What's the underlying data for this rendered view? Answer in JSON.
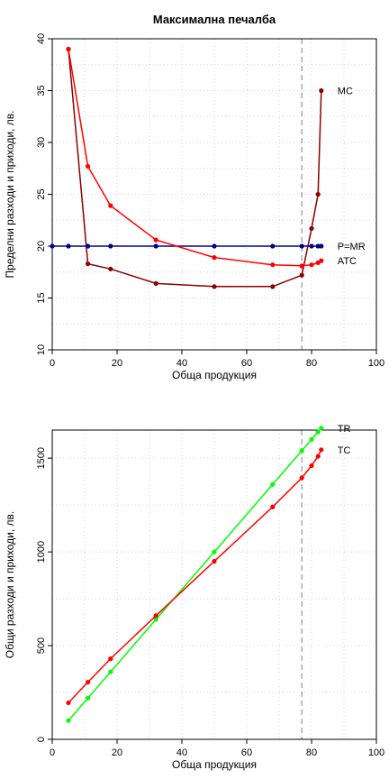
{
  "chart_data": [
    {
      "type": "line",
      "title": "Максимална печалба",
      "xlabel": "Обща продукция",
      "ylabel": "Пределни разходи и приходи, лв.",
      "xlim": [
        0,
        100
      ],
      "ylim": [
        10,
        40
      ],
      "xticks": [
        0,
        20,
        40,
        60,
        80,
        100
      ],
      "yticks": [
        10,
        15,
        20,
        25,
        30,
        35,
        40
      ],
      "grid": true,
      "vline_x": 77,
      "series": [
        {
          "name": "MC",
          "color": "#8b0000",
          "points": [
            [
              5,
              39
            ],
            [
              11,
              18.3
            ],
            [
              18,
              17.8
            ],
            [
              32,
              16.4
            ],
            [
              50,
              16.1
            ],
            [
              68,
              16.1
            ],
            [
              77,
              17.2
            ],
            [
              80,
              21.7
            ],
            [
              82,
              25
            ],
            [
              83,
              35
            ]
          ]
        },
        {
          "name": "P=MR",
          "color": "#00008b",
          "points": [
            [
              0,
              20
            ],
            [
              5,
              20
            ],
            [
              11,
              20
            ],
            [
              18,
              20
            ],
            [
              32,
              20
            ],
            [
              50,
              20
            ],
            [
              68,
              20
            ],
            [
              77,
              20
            ],
            [
              80,
              20
            ],
            [
              82,
              20
            ],
            [
              83,
              20
            ]
          ]
        },
        {
          "name": "ATC",
          "color": "#ff0000",
          "points": [
            [
              5,
              39
            ],
            [
              11,
              27.7
            ],
            [
              18,
              23.9
            ],
            [
              32,
              20.6
            ],
            [
              50,
              18.9
            ],
            [
              68,
              18.2
            ],
            [
              77,
              18.1
            ],
            [
              80,
              18.2
            ],
            [
              82,
              18.4
            ],
            [
              83,
              18.6
            ]
          ]
        }
      ]
    },
    {
      "type": "line",
      "title": "",
      "xlabel": "Обща продукция",
      "ylabel": "Общи разходи и приходи, лв.",
      "xlim": [
        0,
        100
      ],
      "ylim": [
        0,
        1650
      ],
      "xticks": [
        0,
        20,
        40,
        60,
        80,
        100
      ],
      "yticks": [
        0,
        500,
        1000,
        1500
      ],
      "grid": true,
      "vline_x": 77,
      "series": [
        {
          "name": "TR",
          "color": "#00ff00",
          "points": [
            [
              5,
              100
            ],
            [
              11,
              220
            ],
            [
              18,
              360
            ],
            [
              32,
              640
            ],
            [
              50,
              1000
            ],
            [
              68,
              1360
            ],
            [
              77,
              1540
            ],
            [
              80,
              1600
            ],
            [
              82,
              1640
            ],
            [
              83,
              1660
            ]
          ]
        },
        {
          "name": "TC",
          "color": "#ff0000",
          "points": [
            [
              5,
              195
            ],
            [
              11,
              305
            ],
            [
              18,
              430
            ],
            [
              32,
              660
            ],
            [
              50,
              950
            ],
            [
              68,
              1240
            ],
            [
              77,
              1395
            ],
            [
              80,
              1460
            ],
            [
              82,
              1510
            ],
            [
              83,
              1545
            ]
          ]
        }
      ]
    }
  ]
}
